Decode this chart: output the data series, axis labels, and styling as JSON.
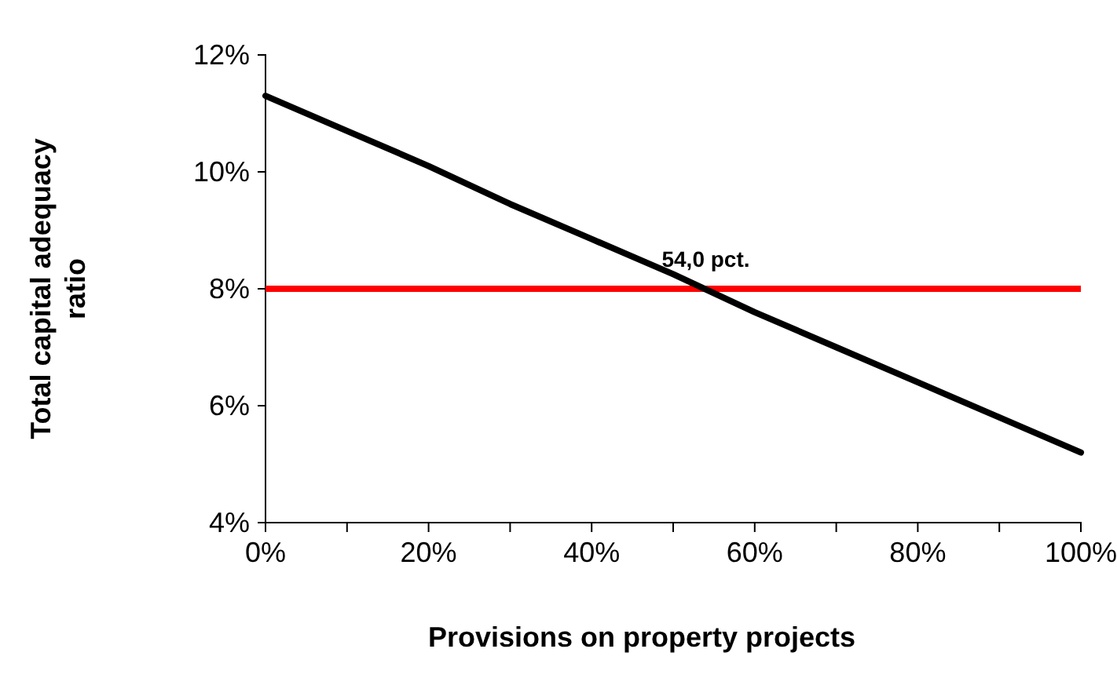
{
  "chart_data": {
    "type": "line",
    "xlabel": "Provisions on property projects",
    "ylabel": "Total capital adequacy ratio",
    "x": [
      0,
      10,
      20,
      30,
      40,
      50,
      60,
      70,
      80,
      90,
      100
    ],
    "series": [
      {
        "color": "#000000",
        "values": [
          11.3,
          10.7,
          10.1,
          9.45,
          8.85,
          8.25,
          7.6,
          7.0,
          6.4,
          5.8,
          5.2
        ]
      }
    ],
    "xlim": [
      0,
      100
    ],
    "xticks": [
      {
        "value": 0,
        "label": "0%"
      },
      {
        "value": 10,
        "label": null
      },
      {
        "value": 20,
        "label": "20%"
      },
      {
        "value": 30,
        "label": null
      },
      {
        "value": 40,
        "label": "40%"
      },
      {
        "value": 50,
        "label": null
      },
      {
        "value": 60,
        "label": "60%"
      },
      {
        "value": 70,
        "label": null
      },
      {
        "value": 80,
        "label": "80%"
      },
      {
        "value": 90,
        "label": null
      },
      {
        "value": 100,
        "label": "100%"
      }
    ],
    "ylim": [
      4,
      12
    ],
    "yticks": [
      {
        "value": 4,
        "label": "4%"
      },
      {
        "value": 6,
        "label": "6%"
      },
      {
        "value": 8,
        "label": "8%"
      },
      {
        "value": 10,
        "label": "10%"
      },
      {
        "value": 12,
        "label": "12%"
      }
    ],
    "ref_lines": [
      {
        "axis": "y",
        "value": 8,
        "color": "#ff0000"
      }
    ],
    "annotations": [
      {
        "text": "54,0 pct.",
        "x": 54,
        "y": 8
      }
    ],
    "grid": false,
    "marker": "none",
    "line_style": "solid"
  }
}
